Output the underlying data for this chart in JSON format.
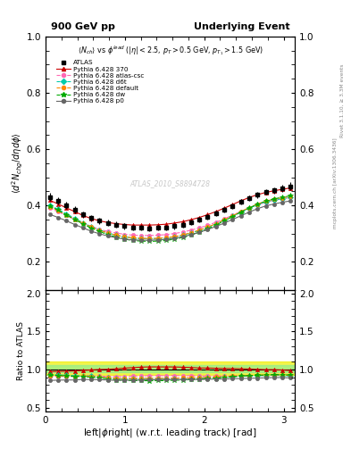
{
  "title_left": "900 GeV pp",
  "title_right": "Underlying Event",
  "ylabel_main": "$\\langle d^2 N_{chg}/d\\eta d\\phi \\rangle$",
  "ylabel_ratio": "Ratio to ATLAS",
  "xlabel": "left|$\\phi$right| (w.r.t. leading track) [rad]",
  "subtitle": "$\\langle N_{ch}\\rangle$ vs $\\phi^{lead}$ ($|\\eta| < 2.5$, $p_T > 0.5$ GeV, $p_{T_1} > 1.5$ GeV)",
  "watermark": "ATLAS_2010_S8894728",
  "rivet_label": "Rivet 3.1.10, ≥ 3.3M events",
  "mcplots_label": "mcplots.cern.ch [arXiv:1306.3436]",
  "ylim_main": [
    0.1,
    1.0
  ],
  "ylim_ratio": [
    0.45,
    2.05
  ],
  "yticks_main": [
    0.2,
    0.4,
    0.6,
    0.8,
    1.0
  ],
  "yticks_ratio": [
    0.5,
    1.0,
    1.5,
    2.0
  ],
  "xlim": [
    0.0,
    3.14159
  ],
  "xticks": [
    0,
    1,
    2,
    3
  ],
  "phi": [
    0.052,
    0.157,
    0.262,
    0.366,
    0.471,
    0.576,
    0.68,
    0.785,
    0.89,
    0.995,
    1.099,
    1.204,
    1.309,
    1.414,
    1.518,
    1.623,
    1.728,
    1.833,
    1.937,
    2.042,
    2.147,
    2.251,
    2.356,
    2.461,
    2.566,
    2.67,
    2.775,
    2.88,
    2.985,
    3.089
  ],
  "atlas": [
    0.43,
    0.415,
    0.4,
    0.385,
    0.368,
    0.355,
    0.345,
    0.338,
    0.332,
    0.326,
    0.322,
    0.32,
    0.319,
    0.32,
    0.322,
    0.326,
    0.332,
    0.34,
    0.35,
    0.36,
    0.372,
    0.385,
    0.398,
    0.412,
    0.425,
    0.437,
    0.447,
    0.453,
    0.46,
    0.468
  ],
  "atlas_err": [
    0.015,
    0.013,
    0.012,
    0.012,
    0.011,
    0.011,
    0.01,
    0.01,
    0.01,
    0.01,
    0.01,
    0.01,
    0.01,
    0.01,
    0.01,
    0.01,
    0.01,
    0.01,
    0.01,
    0.01,
    0.01,
    0.01,
    0.01,
    0.01,
    0.01,
    0.01,
    0.01,
    0.012,
    0.013,
    0.015
  ],
  "p370": [
    0.418,
    0.405,
    0.391,
    0.378,
    0.364,
    0.353,
    0.345,
    0.339,
    0.335,
    0.332,
    0.33,
    0.33,
    0.33,
    0.331,
    0.333,
    0.337,
    0.342,
    0.349,
    0.357,
    0.367,
    0.378,
    0.39,
    0.403,
    0.416,
    0.428,
    0.438,
    0.446,
    0.452,
    0.457,
    0.462
  ],
  "p370_color": "#cc0000",
  "p370_label": "Pythia 6.428 370",
  "patlas_csc": [
    0.39,
    0.377,
    0.364,
    0.35,
    0.337,
    0.325,
    0.315,
    0.307,
    0.302,
    0.297,
    0.294,
    0.293,
    0.293,
    0.294,
    0.296,
    0.3,
    0.305,
    0.312,
    0.32,
    0.329,
    0.34,
    0.352,
    0.365,
    0.378,
    0.391,
    0.402,
    0.411,
    0.418,
    0.423,
    0.428
  ],
  "patlas_csc_color": "#ff69b4",
  "patlas_csc_label": "Pythia 6.428 atlas-csc",
  "pd6t": [
    0.4,
    0.386,
    0.37,
    0.354,
    0.338,
    0.324,
    0.312,
    0.302,
    0.294,
    0.288,
    0.284,
    0.282,
    0.282,
    0.282,
    0.284,
    0.288,
    0.294,
    0.302,
    0.311,
    0.322,
    0.334,
    0.347,
    0.361,
    0.376,
    0.39,
    0.402,
    0.412,
    0.419,
    0.424,
    0.428
  ],
  "pd6t_color": "#00ccaa",
  "pd6t_label": "Pythia 6.428 d6t",
  "pdefault": [
    0.395,
    0.381,
    0.366,
    0.351,
    0.336,
    0.323,
    0.311,
    0.302,
    0.294,
    0.288,
    0.285,
    0.283,
    0.282,
    0.283,
    0.285,
    0.289,
    0.295,
    0.303,
    0.312,
    0.323,
    0.335,
    0.349,
    0.363,
    0.378,
    0.392,
    0.405,
    0.415,
    0.422,
    0.427,
    0.432
  ],
  "pdefault_color": "#ff8800",
  "pdefault_label": "Pythia 6.428 default",
  "pdw": [
    0.398,
    0.383,
    0.366,
    0.35,
    0.334,
    0.319,
    0.307,
    0.296,
    0.287,
    0.28,
    0.275,
    0.273,
    0.272,
    0.273,
    0.275,
    0.28,
    0.286,
    0.295,
    0.305,
    0.317,
    0.33,
    0.345,
    0.36,
    0.376,
    0.391,
    0.404,
    0.415,
    0.423,
    0.429,
    0.434
  ],
  "pdw_color": "#00aa00",
  "pdw_label": "Pythia 6.428 dw",
  "pp0": [
    0.368,
    0.357,
    0.345,
    0.332,
    0.32,
    0.308,
    0.299,
    0.291,
    0.285,
    0.28,
    0.277,
    0.276,
    0.276,
    0.277,
    0.279,
    0.283,
    0.288,
    0.296,
    0.304,
    0.314,
    0.325,
    0.337,
    0.35,
    0.363,
    0.376,
    0.388,
    0.398,
    0.405,
    0.411,
    0.416
  ],
  "pp0_color": "#666666",
  "pp0_label": "Pythia 6.428 p0",
  "ratio_band_yellow": "#eeee00",
  "ratio_band_green": "#90ee90",
  "ratio_band_alpha": 0.7
}
